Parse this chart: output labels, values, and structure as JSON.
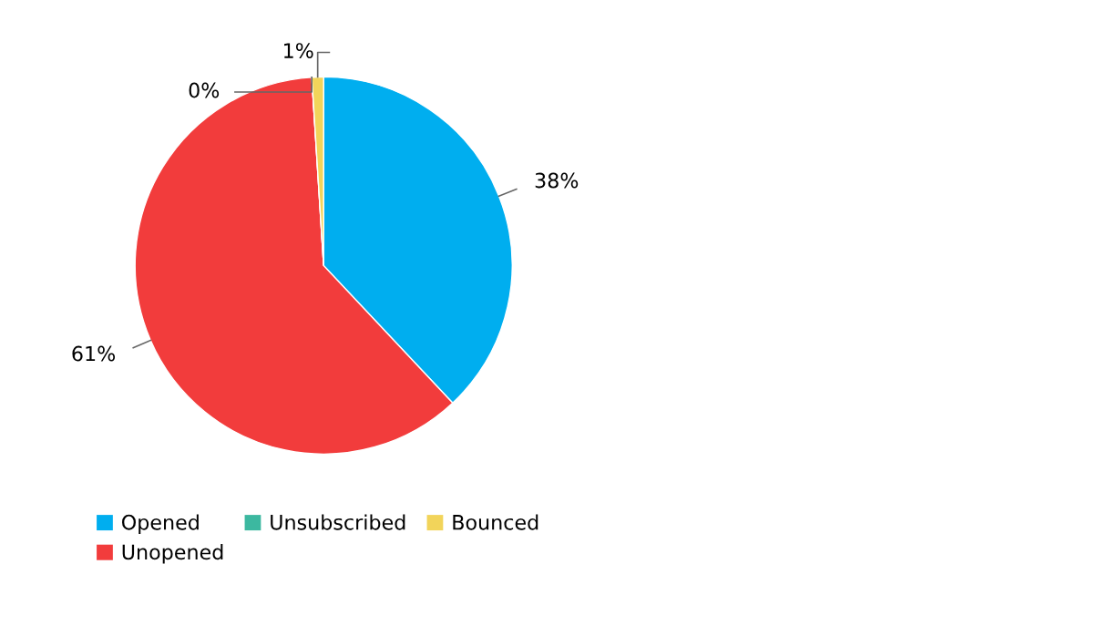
{
  "chart_data": {
    "type": "pie",
    "categories": [
      "Opened",
      "Unopened",
      "Unsubscribed",
      "Bounced"
    ],
    "values": [
      38,
      61,
      0,
      1
    ],
    "value_labels": [
      "38%",
      "61%",
      "0%",
      "1%"
    ],
    "colors": [
      "#00aeef",
      "#f23c3c",
      "#3cb8a0",
      "#f2d45a"
    ],
    "legend": "bottom"
  }
}
